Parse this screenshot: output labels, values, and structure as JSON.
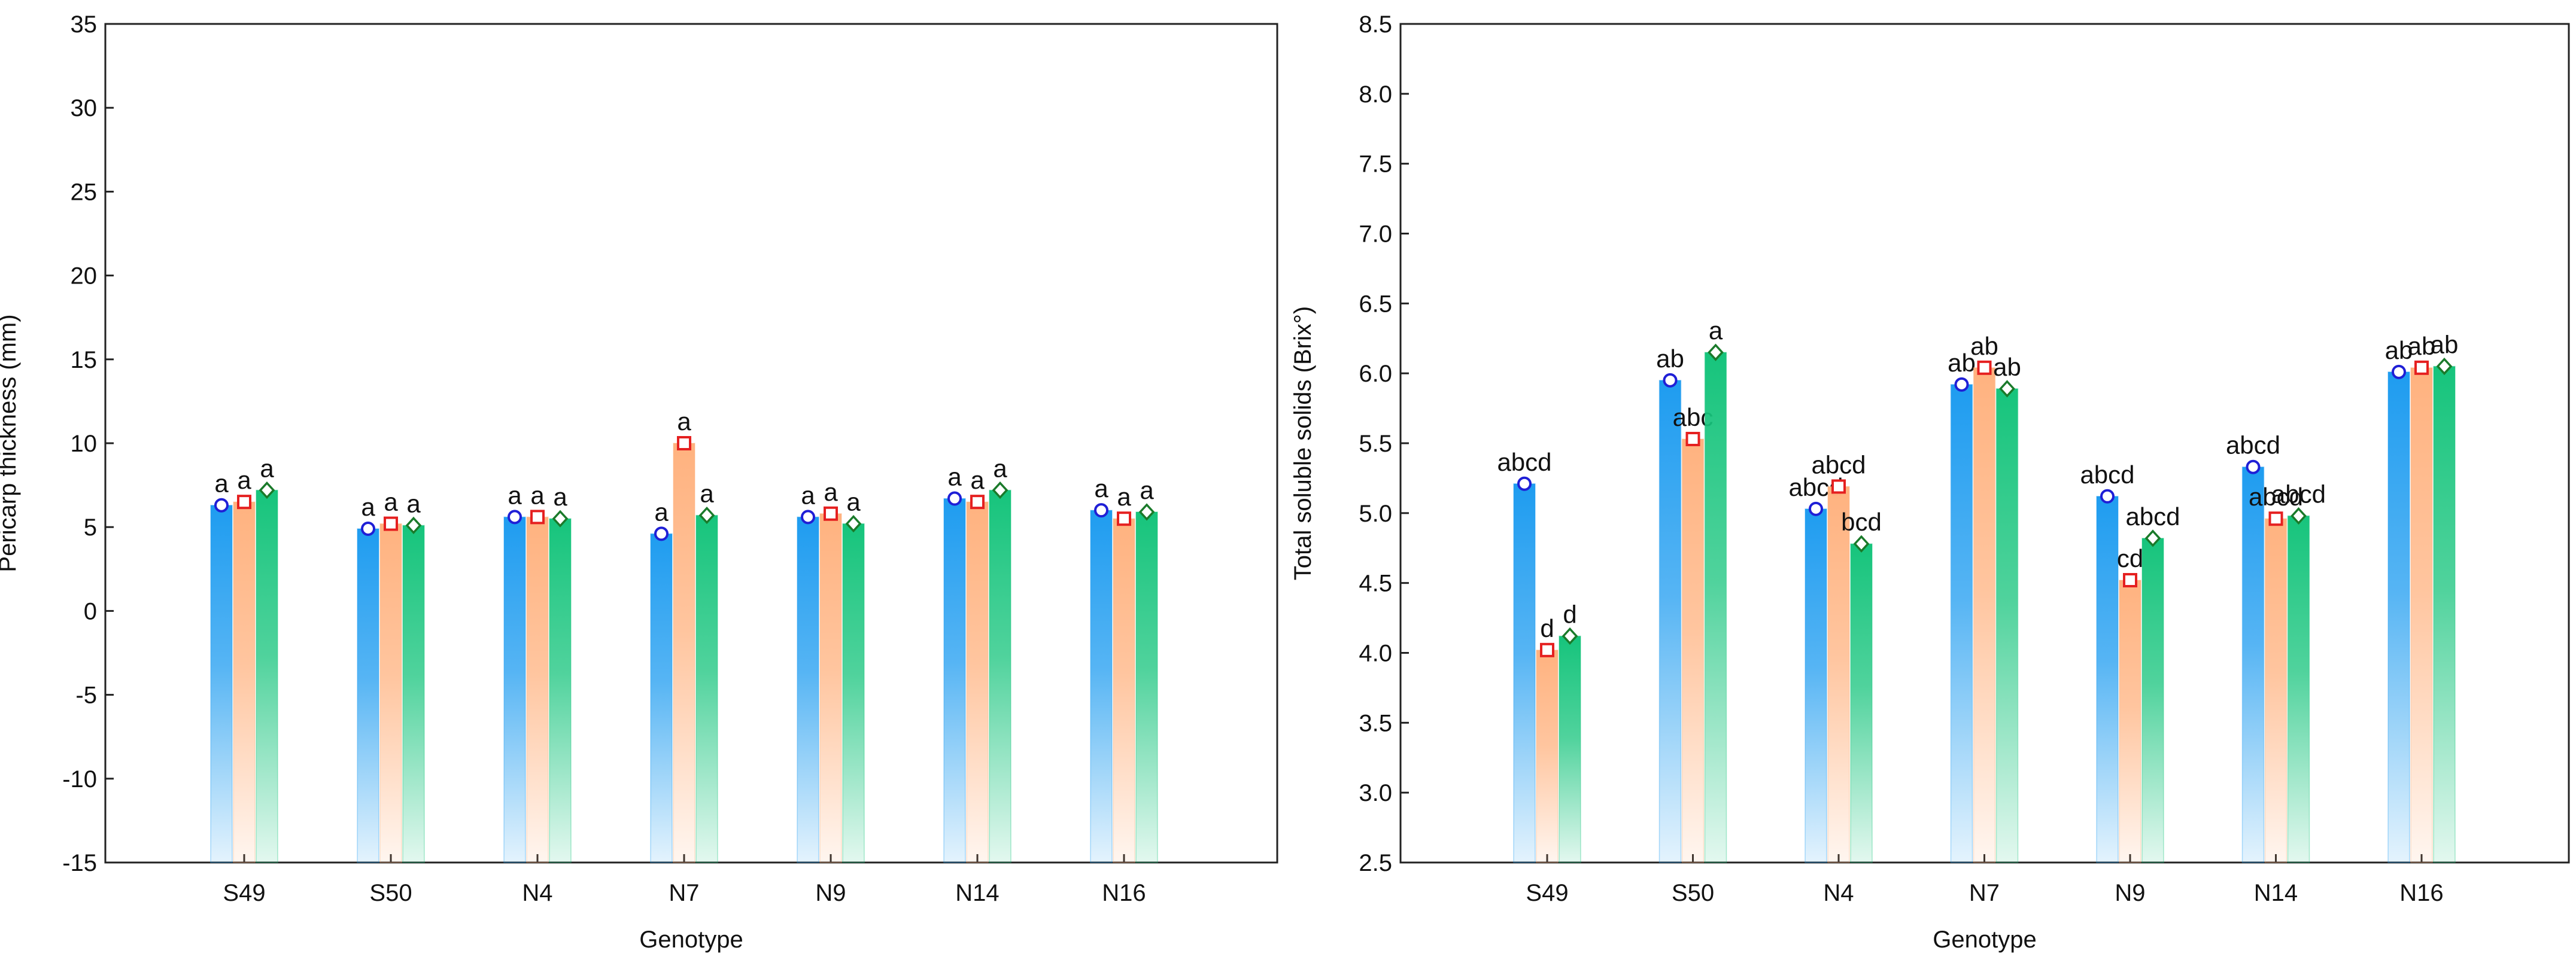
{
  "colors": {
    "series1": "#1e9cf0",
    "series2": "#ffb27f",
    "series3": "#16c47c",
    "marker1": "#1f1fd6",
    "marker2": "#e52020",
    "marker3": "#1a7a2a"
  },
  "chart_data": [
    {
      "type": "bar",
      "title": "",
      "xlabel": "Genotype",
      "ylabel": "Pericarp thickness (mm)",
      "ylim": [
        -15,
        35
      ],
      "yticks": [
        35,
        30,
        25,
        20,
        15,
        10,
        5,
        0,
        -5,
        -10,
        -15
      ],
      "categories": [
        "S49",
        "S50",
        "N4",
        "N7",
        "N9",
        "N14",
        "N16"
      ],
      "grid": false,
      "legend": "none",
      "series": [
        {
          "values": [
            6.3,
            4.9,
            5.6,
            4.6,
            5.6,
            6.7,
            6.0
          ],
          "labels": [
            "a",
            "a",
            "a",
            "a",
            "a",
            "a",
            "a"
          ]
        },
        {
          "values": [
            6.5,
            5.2,
            5.6,
            10.0,
            5.8,
            6.5,
            5.5
          ],
          "labels": [
            "a",
            "a",
            "a",
            "a",
            "a",
            "a",
            "a"
          ]
        },
        {
          "values": [
            7.2,
            5.1,
            5.5,
            5.7,
            5.2,
            7.2,
            5.9
          ],
          "labels": [
            "a",
            "a",
            "a",
            "a",
            "a",
            "a",
            "a"
          ]
        }
      ]
    },
    {
      "type": "bar",
      "title": "",
      "xlabel": "Genotype",
      "ylabel": "Total soluble solids (Brix°)",
      "ylim": [
        2.5,
        8.5
      ],
      "yticks": [
        "8.5",
        "8.0",
        "7.5",
        "7.0",
        "6.5",
        "6.0",
        "5.5",
        "5.0",
        "4.5",
        "4.0",
        "3.5",
        "3.0",
        "2.5"
      ],
      "categories": [
        "S49",
        "S50",
        "N4",
        "N7",
        "N9",
        "N14",
        "N16"
      ],
      "grid": false,
      "legend": "none",
      "series": [
        {
          "values": [
            5.21,
            5.95,
            5.03,
            5.92,
            5.12,
            5.33,
            6.01
          ],
          "labels": [
            "abcd",
            "ab",
            "abcd",
            "ab",
            "abcd",
            "abcd",
            "ab"
          ]
        },
        {
          "values": [
            4.02,
            5.53,
            5.19,
            6.04,
            4.52,
            4.96,
            6.04
          ],
          "labels": [
            "d",
            "abc",
            "abcd",
            "ab",
            "cd",
            "abcd",
            "ab"
          ]
        },
        {
          "values": [
            4.12,
            6.15,
            4.78,
            5.89,
            4.82,
            4.98,
            6.05
          ],
          "labels": [
            "d",
            "a",
            "bcd",
            "ab",
            "abcd",
            "abcd",
            "ab"
          ]
        }
      ]
    }
  ]
}
